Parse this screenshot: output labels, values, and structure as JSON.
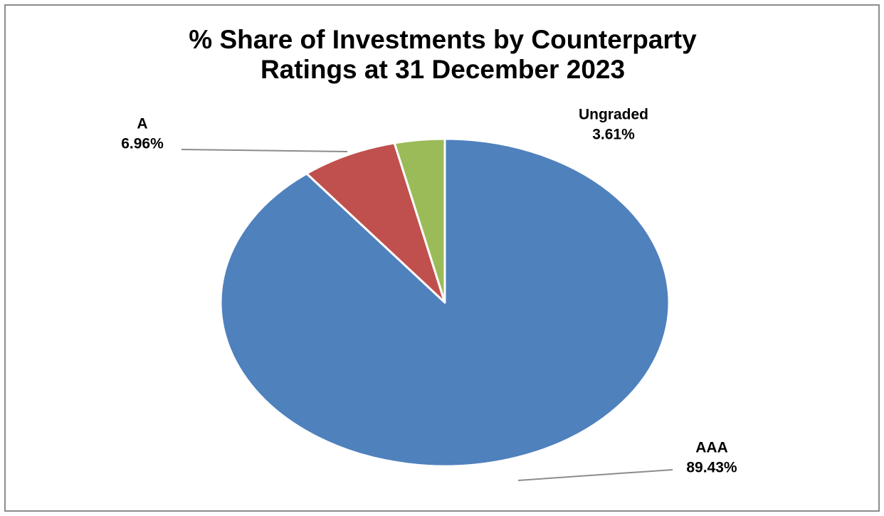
{
  "chart_data": {
    "type": "pie",
    "title": [
      "% Share of Investments by Counterparty",
      "Ratings at 31 December 2023"
    ],
    "categories": [
      "AAA",
      "A",
      "Ungraded"
    ],
    "values": [
      89.43,
      6.96,
      3.61
    ],
    "value_labels": [
      "89.43%",
      "6.96%",
      "3.61%"
    ],
    "colors": [
      "#4f81bd",
      "#c0504d",
      "#9bbb59"
    ]
  }
}
